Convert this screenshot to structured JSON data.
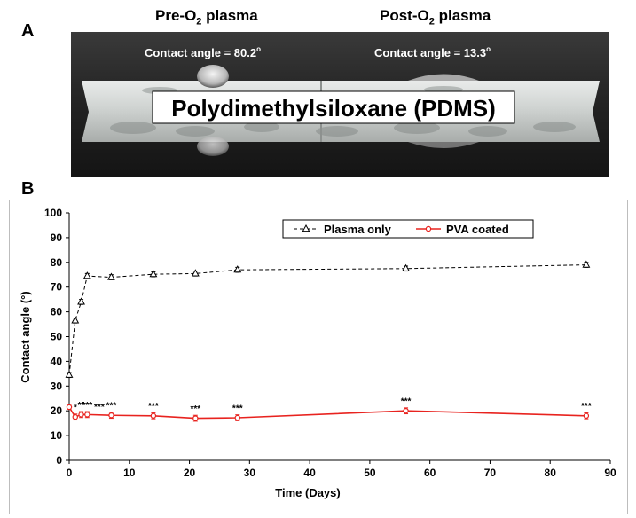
{
  "panel_a": {
    "label": "A",
    "pre_title": "Pre-O",
    "pre_title_sub": "2",
    "pre_title_suffix": " plasma",
    "post_title": "Post-O",
    "post_title_sub": "2",
    "post_title_suffix": " plasma",
    "pre_angle_text": "Contact angle = 80.2",
    "post_angle_text": "Contact angle = 13.3",
    "degree_mark": "o",
    "center_label": "Polydimethylsiloxane (PDMS)"
  },
  "panel_b": {
    "label": "B"
  },
  "chart_data": {
    "type": "line",
    "xlabel": "Time (Days)",
    "ylabel": "Contact angle (°)",
    "xlim": [
      0,
      90
    ],
    "ylim": [
      0,
      100
    ],
    "xticks": [
      0,
      10,
      20,
      30,
      40,
      50,
      60,
      70,
      80,
      90
    ],
    "yticks": [
      0,
      10,
      20,
      30,
      40,
      50,
      60,
      70,
      80,
      90,
      100
    ],
    "grid": false,
    "legend_position": "top-right",
    "series": [
      {
        "name": "Plasma only",
        "color": "#000000",
        "line_style": "dashed",
        "marker": "triangle-open",
        "x": [
          0,
          1,
          2,
          3,
          7,
          14,
          21,
          28,
          56,
          86
        ],
        "y": [
          34.5,
          56.5,
          64,
          74.5,
          74,
          75.2,
          75.5,
          77,
          77.5,
          79
        ],
        "err": [
          1,
          1,
          1,
          1,
          1,
          1,
          1,
          1,
          1,
          1
        ]
      },
      {
        "name": "PVA coated",
        "color": "#e8231f",
        "line_style": "solid",
        "marker": "circle-open",
        "x": [
          0,
          1,
          2,
          3,
          7,
          14,
          21,
          28,
          56,
          86
        ],
        "y": [
          21.5,
          17.5,
          18.5,
          18.5,
          18.2,
          18,
          17,
          17.2,
          20,
          18
        ],
        "err": [
          0.8,
          1.2,
          1.2,
          1.2,
          1.2,
          1.2,
          1.2,
          1.2,
          1.2,
          1.2
        ]
      }
    ],
    "significance_labels": [
      {
        "x": 1,
        "text": "*"
      },
      {
        "x": 2,
        "text": "**"
      },
      {
        "x": 3,
        "text": "***"
      },
      {
        "x": 5,
        "text": "***"
      },
      {
        "x": 7,
        "text": "***"
      },
      {
        "x": 14,
        "text": "***"
      },
      {
        "x": 21,
        "text": "***"
      },
      {
        "x": 28,
        "text": "***"
      },
      {
        "x": 56,
        "text": "***"
      },
      {
        "x": 86,
        "text": "***"
      }
    ]
  }
}
